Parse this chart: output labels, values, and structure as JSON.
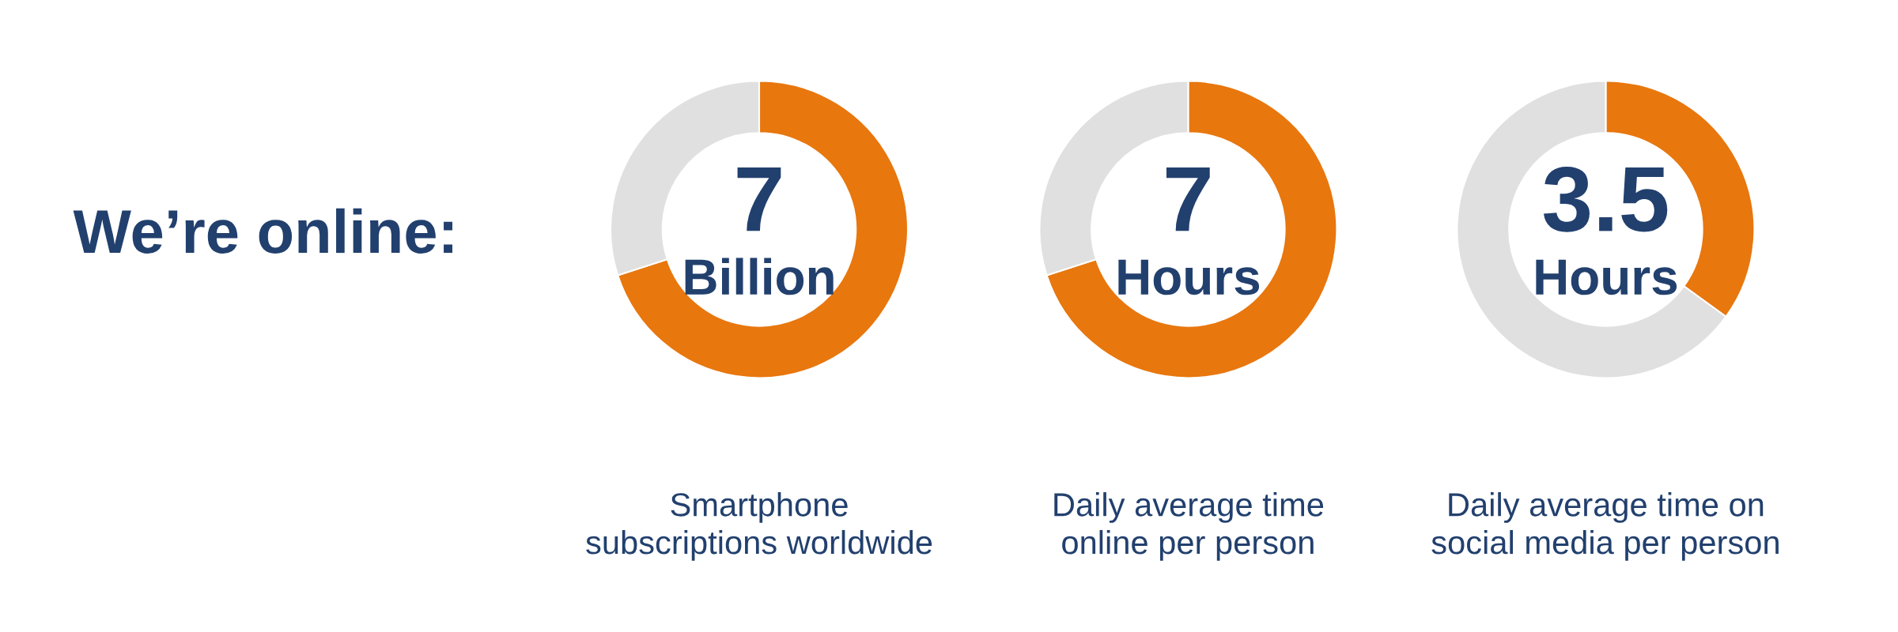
{
  "chart_data": [
    {
      "type": "other",
      "title": "We’re online:"
    },
    {
      "type": "donut",
      "categories": [
        null,
        null
      ],
      "values": [
        70,
        30
      ],
      "colors": [
        "#e8770e",
        "#e0e0e0"
      ],
      "annotations": [
        "7",
        "Billion"
      ],
      "xlabel": "Smartphone\nsubscriptions worldwide"
    },
    {
      "type": "donut",
      "categories": [
        null,
        null
      ],
      "values": [
        70,
        30
      ],
      "colors": [
        "#e8770e",
        "#e0e0e0"
      ],
      "annotations": [
        "7",
        "Hours"
      ],
      "xlabel": "Daily average time\nonline per person"
    },
    {
      "type": "donut",
      "categories": [
        null,
        null
      ],
      "values": [
        35,
        65
      ],
      "colors": [
        "#e8770e",
        "#e0e0e0"
      ],
      "annotations": [
        "3.5",
        "Hours"
      ],
      "xlabel": "Daily average time on\nsocial media per person"
    }
  ]
}
